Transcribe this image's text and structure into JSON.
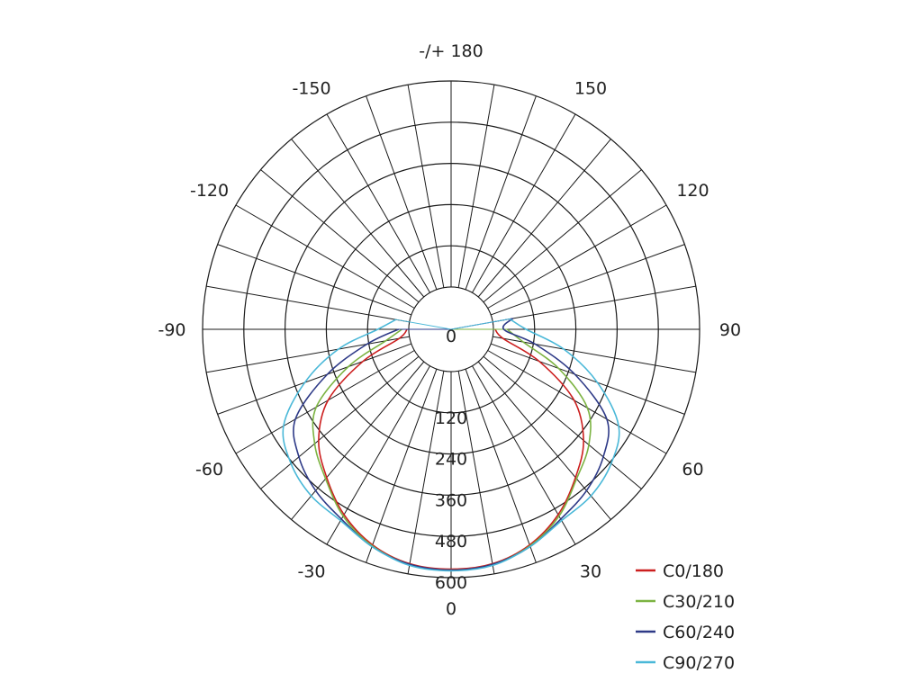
{
  "chart_data": {
    "type": "polar",
    "title": "",
    "radial_ticks": [
      0,
      120,
      240,
      360,
      480,
      600
    ],
    "radial_labels": [
      "0",
      "120",
      "240",
      "360",
      "480",
      "600"
    ],
    "radial_max": 600,
    "angle_labels": [
      {
        "angle": 0,
        "text": "0"
      },
      {
        "angle": 30,
        "text": "30"
      },
      {
        "angle": 60,
        "text": "60"
      },
      {
        "angle": 90,
        "text": "90"
      },
      {
        "angle": 120,
        "text": "120"
      },
      {
        "angle": 150,
        "text": "150"
      },
      {
        "angle": 180,
        "text": "-/+ 180"
      },
      {
        "angle": -150,
        "text": "-150"
      },
      {
        "angle": -120,
        "text": "-120"
      },
      {
        "angle": -90,
        "text": "-90"
      },
      {
        "angle": -60,
        "text": "-60"
      },
      {
        "angle": -30,
        "text": "-30"
      }
    ],
    "angle_grid_step": 10,
    "grid": true,
    "legend_position": "bottom-right",
    "series": [
      {
        "name": "C0/180",
        "color": "#cc1f1f",
        "angles": [
          -90,
          -80,
          -70,
          -60,
          -50,
          -40,
          -30,
          -20,
          -10,
          0,
          10,
          20,
          30,
          40,
          50,
          60,
          70,
          80,
          90
        ],
        "values": [
          5,
          30,
          150,
          290,
          380,
          440,
          500,
          545,
          570,
          575,
          570,
          545,
          500,
          440,
          380,
          290,
          150,
          30,
          5
        ]
      },
      {
        "name": "C30/210",
        "color": "#7cb342",
        "angles": [
          -90,
          -80,
          -70,
          -60,
          -50,
          -40,
          -30,
          -20,
          -10,
          0,
          10,
          20,
          30,
          40,
          50,
          60,
          70,
          80,
          90
        ],
        "values": [
          20,
          70,
          195,
          330,
          395,
          445,
          505,
          548,
          572,
          578,
          572,
          548,
          505,
          445,
          400,
          335,
          210,
          90,
          40
        ]
      },
      {
        "name": "C60/240",
        "color": "#2e3a87",
        "angles": [
          -90,
          -80,
          -70,
          -60,
          -50,
          -40,
          -30,
          -20,
          -10,
          0,
          10,
          20,
          30,
          40,
          50,
          60,
          70,
          80,
          90,
          100
        ],
        "values": [
          30,
          125,
          260,
          400,
          455,
          490,
          515,
          550,
          572,
          578,
          572,
          550,
          515,
          490,
          455,
          400,
          260,
          125,
          30,
          60
        ]
      },
      {
        "name": "C90/270",
        "color": "#4ab8d8",
        "angles": [
          -100,
          -90,
          -80,
          -70,
          -60,
          -50,
          -40,
          -30,
          -20,
          -10,
          0,
          10,
          20,
          30,
          40,
          50,
          60,
          70,
          80,
          90,
          100
        ],
        "values": [
          40,
          90,
          210,
          330,
          440,
          485,
          510,
          520,
          550,
          575,
          580,
          575,
          550,
          520,
          510,
          485,
          440,
          330,
          210,
          95,
          50
        ]
      }
    ]
  }
}
